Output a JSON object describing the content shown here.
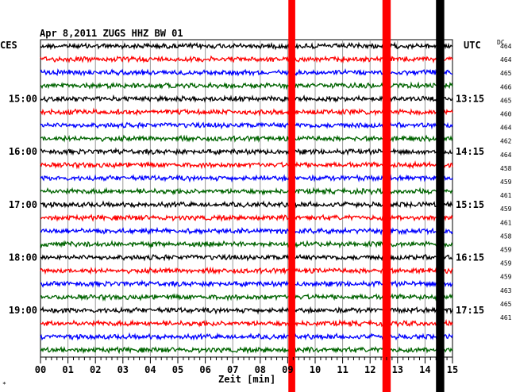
{
  "header": {
    "title": "Apr 8,2011   ZUGS HHZ BW 01",
    "left_timezone": "CES",
    "right_timezone": "UTC",
    "dc_label": "DC"
  },
  "chart_data": {
    "type": "line",
    "title": "Apr 8,2011   ZUGS HHZ BW 01",
    "xlabel": "Zeit [min]",
    "x_ticks": [
      "00",
      "01",
      "02",
      "03",
      "04",
      "05",
      "06",
      "07",
      "08",
      "09",
      "10",
      "11",
      "12",
      "13",
      "14",
      "15"
    ],
    "xlim": [
      0,
      15
    ],
    "left_time_labels": [
      "15:00",
      "16:00",
      "17:00",
      "18:00",
      "19:00"
    ],
    "right_time_labels": [
      "13:15",
      "14:15",
      "15:15",
      "16:15",
      "17:15"
    ],
    "dc_values": [
      "464",
      "464",
      "465",
      "466",
      "465",
      "460",
      "464",
      "462",
      "464",
      "458",
      "459",
      "461",
      "459",
      "461",
      "458",
      "459",
      "459",
      "459",
      "463",
      "465",
      "461"
    ],
    "trace_colors": [
      "#000000",
      "#ff0000",
      "#0000ff",
      "#006400"
    ],
    "trace_count": 24,
    "grid": true,
    "events": [
      {
        "minute": 9.15,
        "width_min": 0.25,
        "color": "#ff0000"
      },
      {
        "minute": 12.6,
        "width_min": 0.3,
        "color": "#ff0000"
      },
      {
        "minute": 14.55,
        "width_min": 0.3,
        "color": "#000000"
      }
    ],
    "corner_mark": "*"
  }
}
